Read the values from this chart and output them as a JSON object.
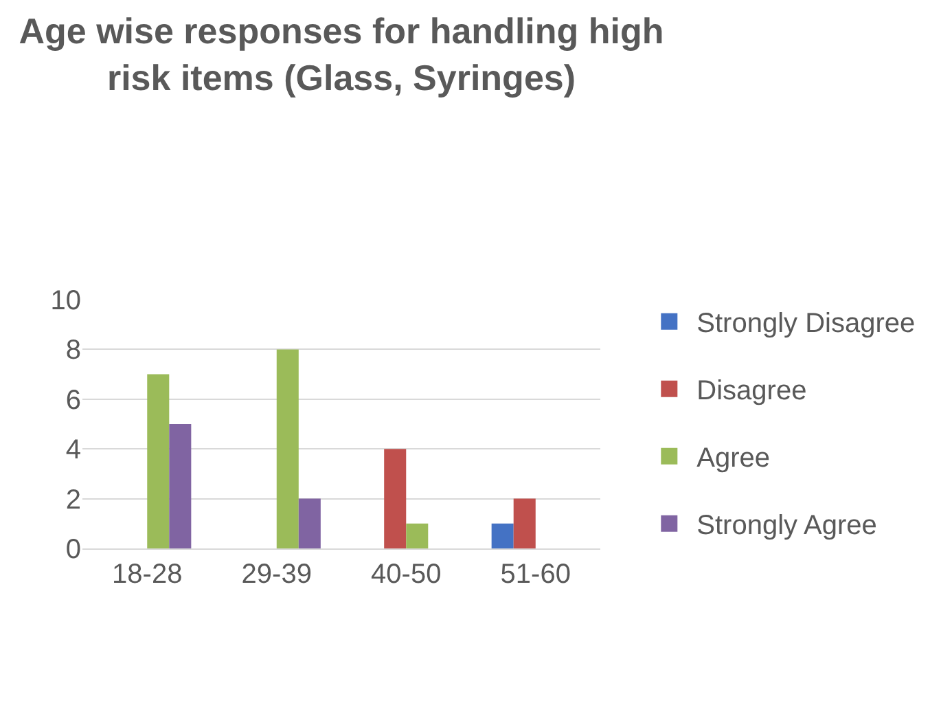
{
  "chart_data": {
    "type": "bar",
    "title": "Age wise responses for handling high\nrisk items (Glass, Syringes)",
    "categories": [
      "18-28",
      "29-39",
      "40-50",
      "51-60"
    ],
    "series": [
      {
        "name": "Strongly Disagree",
        "color": "#4472c4",
        "values": [
          0,
          0,
          0,
          1
        ]
      },
      {
        "name": "Disagree",
        "color": "#c0504d",
        "values": [
          0,
          0,
          4,
          2
        ]
      },
      {
        "name": "Agree",
        "color": "#9bbb59",
        "values": [
          7,
          8,
          1,
          0
        ]
      },
      {
        "name": "Strongly Agree",
        "color": "#8064a2",
        "values": [
          5,
          2,
          0,
          0
        ]
      }
    ],
    "ylim": [
      0,
      10
    ],
    "yticks": [
      0,
      2,
      4,
      6,
      8,
      10
    ],
    "grid": "y",
    "legend": "right"
  }
}
